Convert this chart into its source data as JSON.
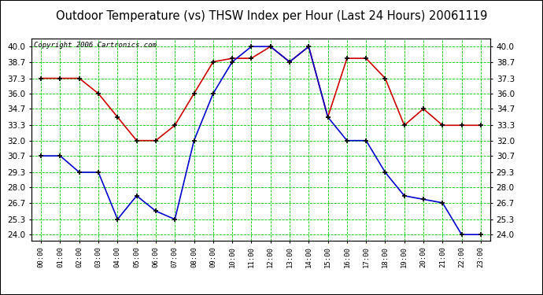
{
  "title": "Outdoor Temperature (vs) THSW Index per Hour (Last 24 Hours) 20061119",
  "copyright": "Copyright 2006 Cartronics.com",
  "hours": [
    "00:00",
    "01:00",
    "02:00",
    "03:00",
    "04:00",
    "05:00",
    "06:00",
    "07:00",
    "08:00",
    "09:00",
    "10:00",
    "11:00",
    "12:00",
    "13:00",
    "14:00",
    "15:00",
    "16:00",
    "17:00",
    "18:00",
    "19:00",
    "20:00",
    "21:00",
    "22:00",
    "23:00"
  ],
  "temp_red": [
    37.3,
    37.3,
    37.3,
    36.0,
    34.0,
    32.0,
    32.0,
    33.3,
    36.0,
    38.7,
    39.0,
    39.0,
    40.0,
    38.7,
    40.0,
    34.0,
    39.0,
    39.0,
    37.3,
    33.3,
    34.7,
    33.3,
    33.3,
    33.3
  ],
  "thsw_blue": [
    30.7,
    30.7,
    29.3,
    29.3,
    25.3,
    27.3,
    26.0,
    25.3,
    32.0,
    36.0,
    38.7,
    40.0,
    40.0,
    38.7,
    40.0,
    34.0,
    32.0,
    32.0,
    29.3,
    27.3,
    27.0,
    26.7,
    24.0,
    24.0
  ],
  "ylim_min": 23.5,
  "ylim_max": 40.7,
  "yticks": [
    24.0,
    25.3,
    26.7,
    28.0,
    29.3,
    30.7,
    32.0,
    33.3,
    34.7,
    36.0,
    37.3,
    38.7,
    40.0
  ],
  "bg_color": "#ffffff",
  "grid_color": "#00cc00",
  "line_color_red": "#cc0000",
  "line_color_blue": "#0000cc",
  "marker_color": "#000000",
  "title_fontsize": 10.5,
  "copyright_fontsize": 6.5,
  "tick_fontsize": 7.5,
  "xtick_fontsize": 6.5
}
